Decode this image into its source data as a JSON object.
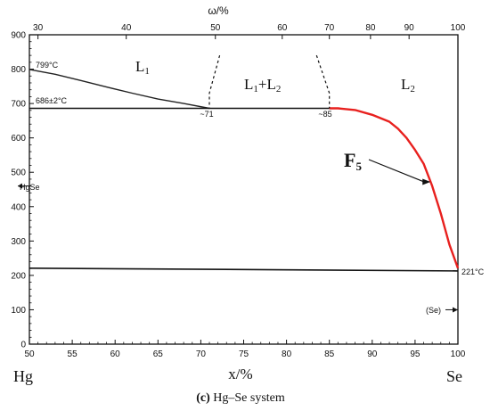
{
  "chart_data": {
    "type": "line",
    "title": "",
    "subtitle": "",
    "xlabel": "x/%",
    "ylabel": "",
    "top_axis_label": "ω/%",
    "xlim": [
      50,
      100
    ],
    "ylim": [
      0,
      900
    ],
    "grid": false,
    "x_ticks": [
      50,
      55,
      60,
      65,
      70,
      75,
      80,
      85,
      90,
      95,
      100
    ],
    "y_ticks": [
      0,
      100,
      200,
      300,
      400,
      500,
      600,
      700,
      800,
      900
    ],
    "top_ticks": [
      {
        "label": "30",
        "x": 51.0
      },
      {
        "label": "40",
        "x": 61.3
      },
      {
        "label": "50",
        "x": 71.7
      },
      {
        "label": "60",
        "x": 79.5
      },
      {
        "label": "70",
        "x": 85.0
      },
      {
        "label": "80",
        "x": 89.8
      },
      {
        "label": "90",
        "x": 94.3
      },
      {
        "label": "100",
        "x": 100.0
      }
    ],
    "series": [
      {
        "values": [
          [
            50,
            799
          ],
          [
            53,
            785
          ],
          [
            56,
            767
          ],
          [
            59,
            748
          ],
          [
            62,
            730
          ],
          [
            65,
            713
          ],
          [
            68,
            700
          ],
          [
            71,
            686
          ]
        ]
      },
      {
        "values": [
          [
            50,
            686
          ],
          [
            71,
            686
          ],
          [
            85,
            686
          ]
        ]
      },
      {
        "values": [
          [
            85,
            686
          ],
          [
            86,
            686
          ],
          [
            88,
            681
          ],
          [
            90,
            667
          ],
          [
            92,
            647
          ],
          [
            93,
            627
          ],
          [
            94,
            600
          ],
          [
            95,
            565
          ],
          [
            96,
            525
          ],
          [
            97,
            460
          ],
          [
            98,
            380
          ],
          [
            99,
            290
          ],
          [
            100,
            221
          ]
        ]
      },
      {
        "values": [
          [
            50,
            221
          ],
          [
            100,
            213
          ]
        ]
      },
      {
        "values": [
          [
            72.2,
            840
          ],
          [
            71,
            730
          ],
          [
            71,
            686
          ]
        ]
      },
      {
        "values": [
          [
            83.5,
            840
          ],
          [
            85,
            730
          ],
          [
            85,
            686
          ]
        ]
      }
    ],
    "annotations": {
      "t_l1": "799°C",
      "t_mono": "686±2°C",
      "c71": "~71",
      "c85": "~85",
      "t_se": "221°C",
      "hgse": "HgSe",
      "se_phase": "(Se)"
    },
    "markers": [
      {
        "label": "HgSe",
        "y": 460
      },
      {
        "label": "(Se)",
        "y": 100
      }
    ],
    "regions": {
      "l1": {
        "main": "L",
        "sub": "1"
      },
      "l1l2": {
        "main": "L",
        "sub1": "1",
        "mid": "+L",
        "sub2": "2"
      },
      "l2": {
        "main": "L",
        "sub": "2"
      }
    },
    "callout": {
      "main": "F",
      "sub": "5"
    },
    "end_labels": {
      "left": "Hg",
      "right": "Se"
    },
    "caption": {
      "tag": "(c)",
      "text": "Hg–Se system"
    },
    "colors": {
      "axes": "#111111",
      "liquidus_red": "#e8201e",
      "curves": "#222222"
    }
  }
}
